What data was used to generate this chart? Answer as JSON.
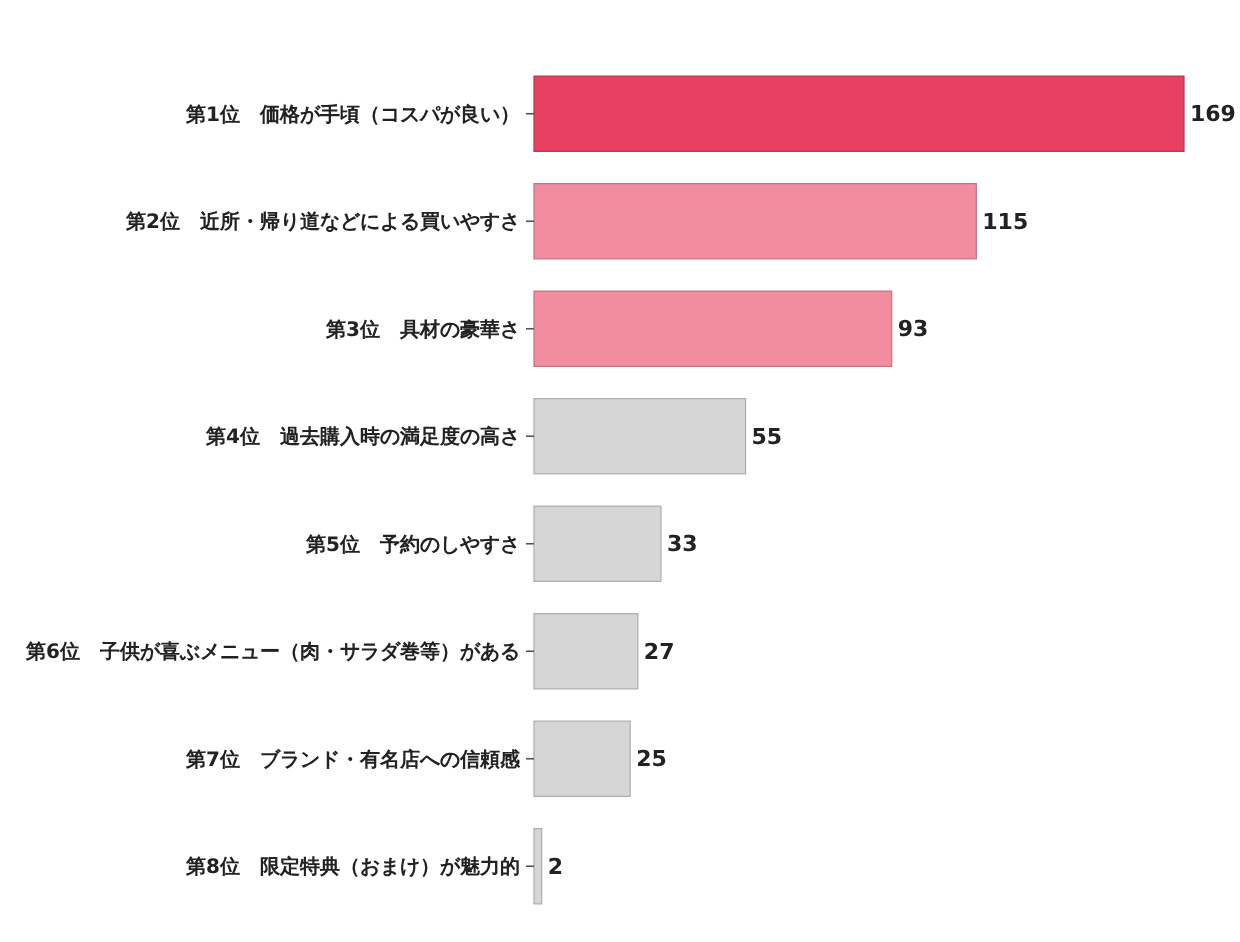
{
  "chart_data": {
    "type": "bar",
    "orientation": "horizontal",
    "categories": [
      "第1位　価格が手頃（コスパが良い）",
      "第2位　近所・帰り道などによる買いやすさ",
      "第3位　具材の豪華さ",
      "第4位　過去購入時の満足度の高さ",
      "第5位　予約のしやすさ",
      "第6位　子供が喜ぶメニュー（肉・サラダ巻等）がある",
      "第7位　ブランド・有名店への信頼感",
      "第8位　限定特典（おまけ）が魅力的"
    ],
    "values": [
      169,
      115,
      93,
      55,
      33,
      27,
      25,
      2
    ],
    "colors": [
      "#e84060",
      "#f28da0",
      "#f28da0",
      "#d6d6d6",
      "#d6d6d6",
      "#d6d6d6",
      "#d6d6d6",
      "#d6d6d6"
    ],
    "data_labels": true
  }
}
